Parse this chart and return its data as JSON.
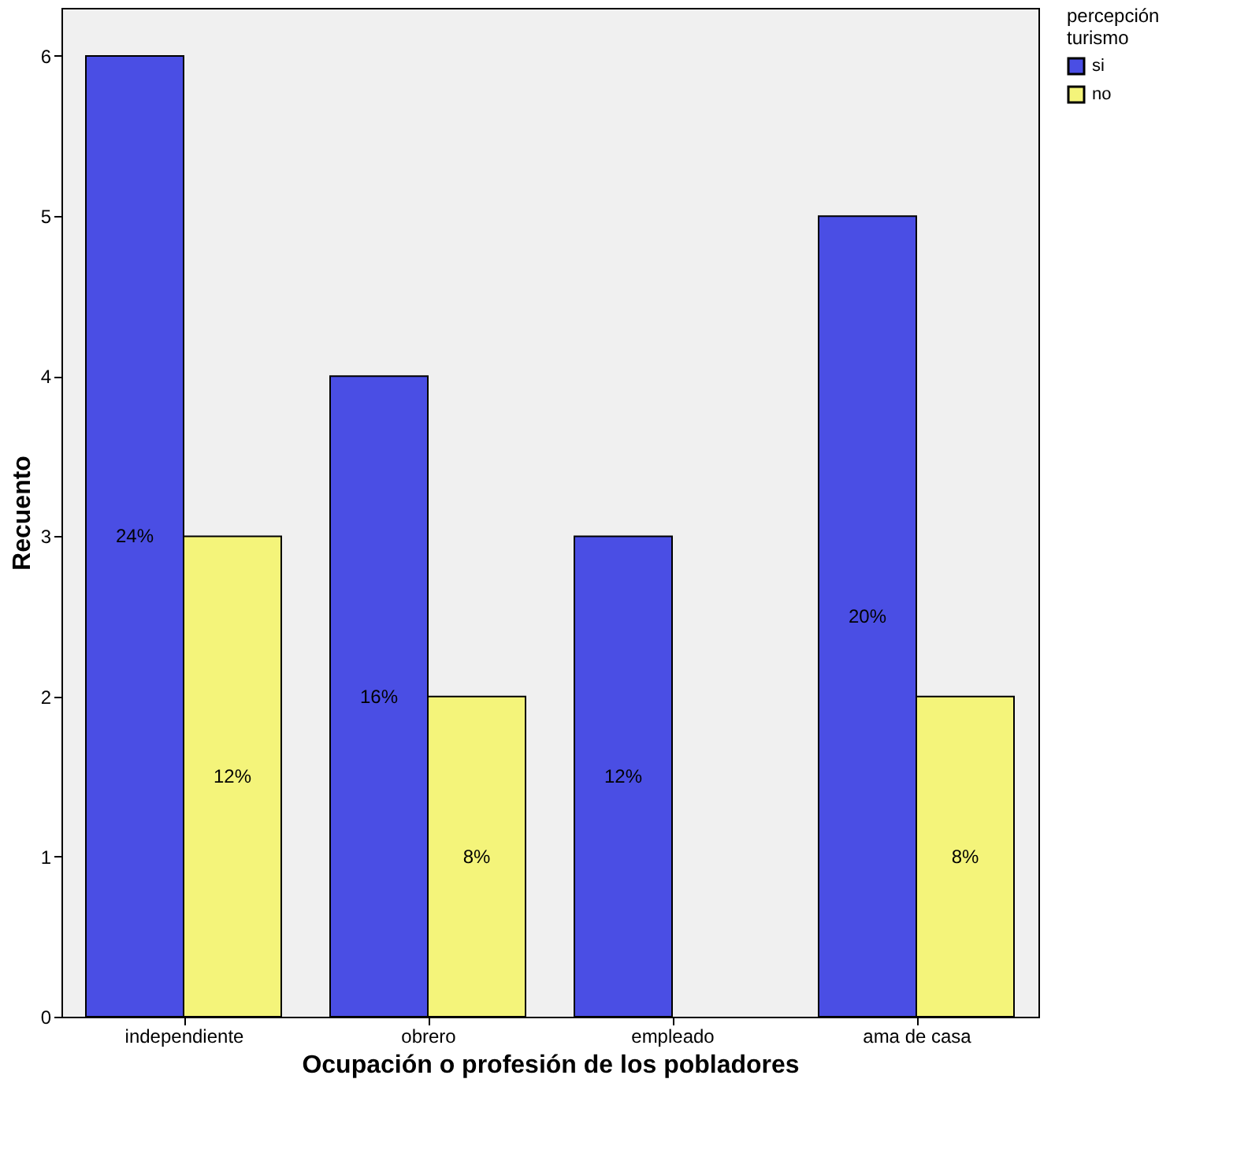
{
  "chart_data": {
    "type": "bar",
    "xlabel": "Ocupación o profesión de los pobladores",
    "ylabel": "Recuento",
    "legend_title": "percepción turismo",
    "categories": [
      "independiente",
      "obrero",
      "empleado",
      "ama de casa"
    ],
    "series": [
      {
        "name": "si",
        "color": "#4a4ee4",
        "values": [
          6,
          4,
          3,
          5
        ]
      },
      {
        "name": "no",
        "color": "#f4f47a",
        "values": [
          3,
          2,
          null,
          2
        ]
      }
    ],
    "annotations": [
      {
        "text": "24%",
        "x": "independiente",
        "y": 3
      },
      {
        "text": "12%",
        "x": "independiente",
        "y": 1.5
      },
      {
        "text": "16%",
        "x": "obrero",
        "y": 2
      },
      {
        "text": "8%",
        "x": "obrero",
        "y": 1
      },
      {
        "text": "12%",
        "x": "empleado",
        "y": 1.5
      },
      {
        "text": "20%",
        "x": "ama de casa",
        "y": 2.5
      },
      {
        "text": "8%",
        "x": "ama de casa",
        "y": 1
      }
    ],
    "ylim": [
      0,
      6.3
    ],
    "yticks": [
      0,
      1,
      2,
      3,
      4,
      5,
      6
    ],
    "grid": false,
    "legend": "top right"
  }
}
